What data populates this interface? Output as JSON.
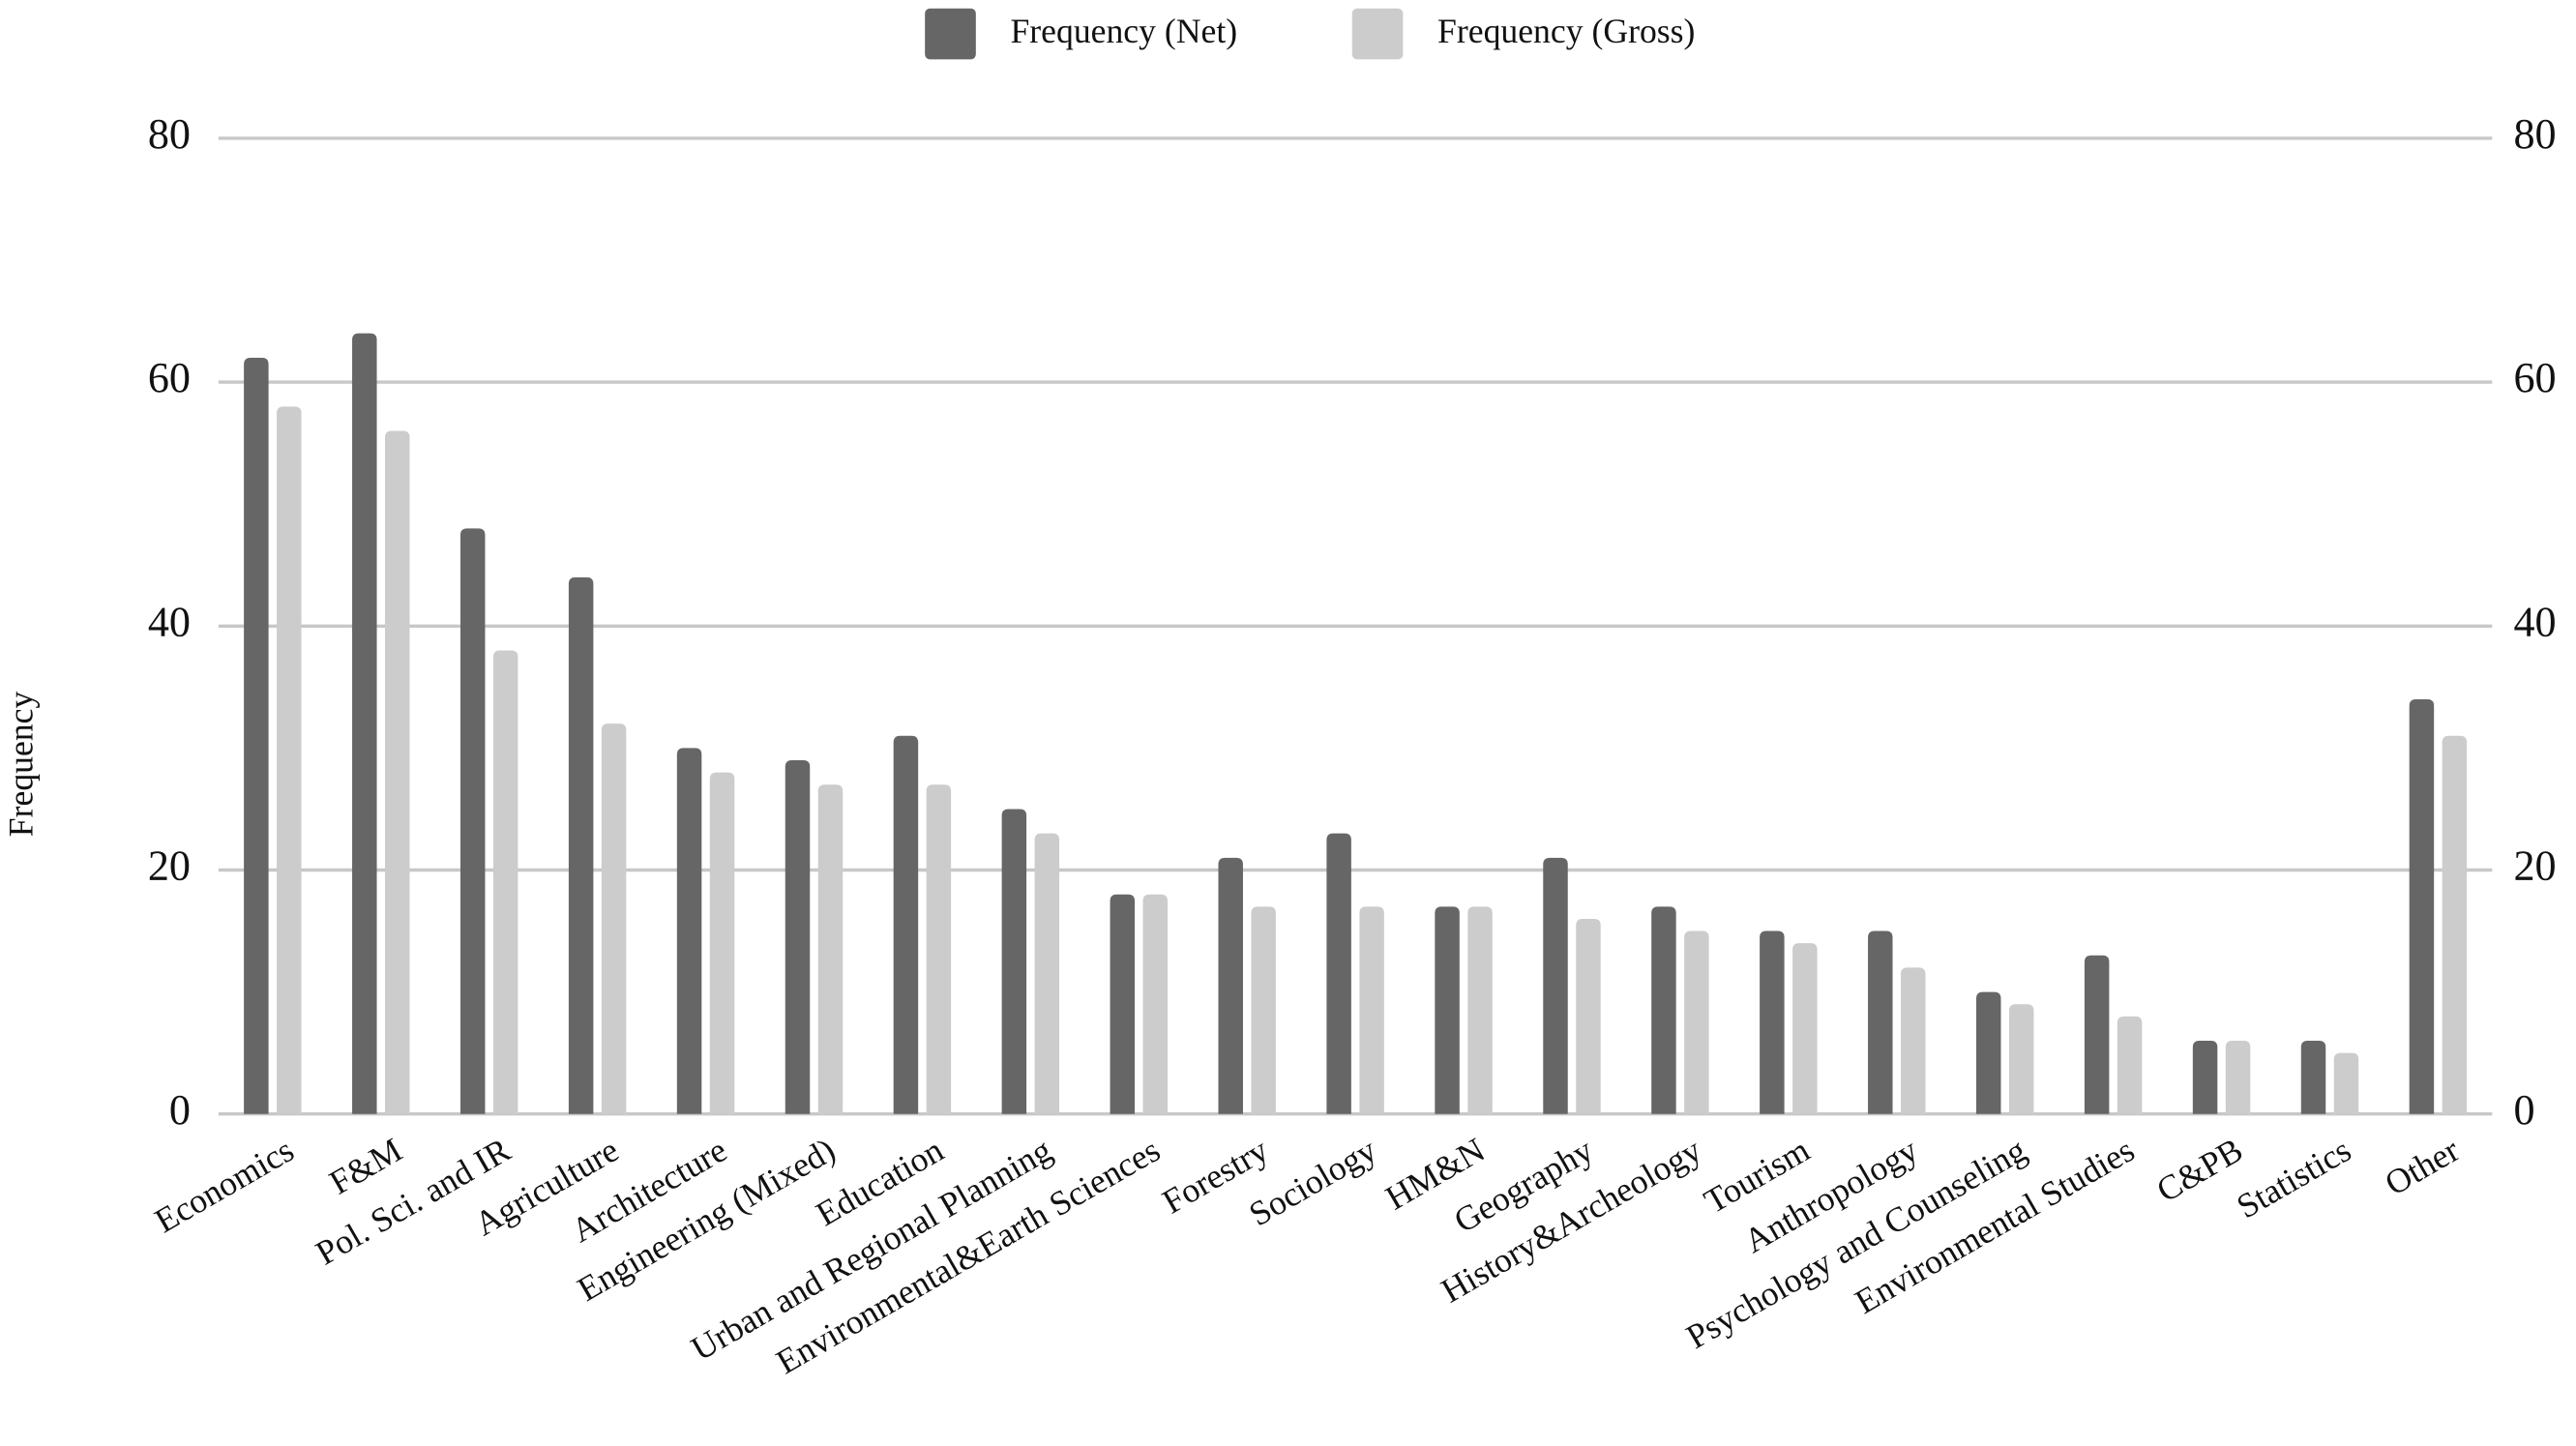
{
  "chart_data": {
    "type": "bar",
    "y_label": "Frequency",
    "categories": [
      "Economics",
      "F&M",
      "Pol. Sci. and IR",
      "Agriculture",
      "Architecture",
      "Engineering (Mixed)",
      "Education",
      "Urban and Regional Planning",
      "Environmental&Earth Sciences",
      "Forestry",
      "Sociology",
      "HM&N",
      "Geography",
      "History&Archeology",
      "Tourism",
      "Anthropology",
      "Psychology and Counseling",
      "Environmental Studies",
      "C&PB",
      "Statistics",
      "Other"
    ],
    "series": [
      {
        "name": "Frequency (Net)",
        "color": "#666666",
        "values": [
          62,
          64,
          48,
          44,
          30,
          29,
          31,
          25,
          18,
          21,
          23,
          17,
          21,
          17,
          15,
          15,
          10,
          13,
          6,
          6,
          34
        ]
      },
      {
        "name": "Frequency (Gross)",
        "color": "#cccccc",
        "values": [
          58,
          56,
          38,
          32,
          28,
          27,
          27,
          23,
          18,
          17,
          17,
          17,
          16,
          15,
          14,
          12,
          9,
          8,
          6,
          5,
          31
        ]
      }
    ],
    "ylim": [
      0,
      80
    ],
    "yticks": [
      0,
      20,
      40,
      60,
      80
    ],
    "y2lim": [
      0,
      80
    ],
    "y2ticks": [
      0,
      20,
      40,
      60,
      80
    ],
    "grid": true,
    "legend": "top"
  }
}
